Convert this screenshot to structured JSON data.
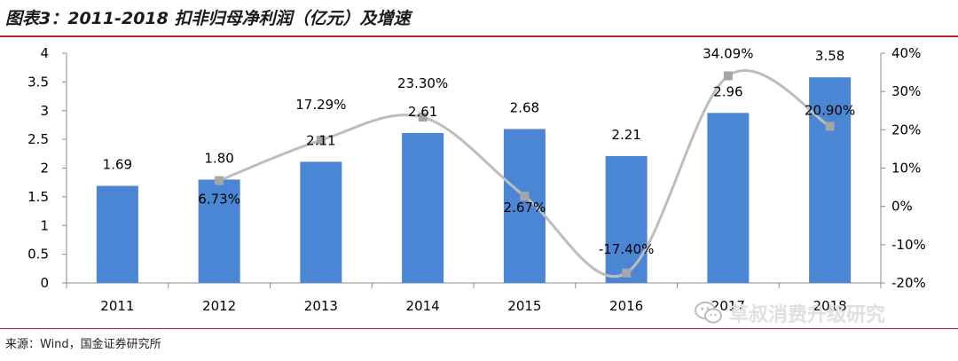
{
  "title": "图表3：2011-2018 扣非归母净利润（亿元）及增速",
  "source": "来源：Wind，国金证券研究所",
  "watermark": "草叔消费升级研究",
  "colors": {
    "bar": "#4a86d4",
    "line": "#bdbdbd",
    "marker": "#a6a6a6",
    "rule": "#b0202e"
  },
  "chart_data": {
    "type": "bar",
    "categories": [
      "2011",
      "2012",
      "2013",
      "2014",
      "2015",
      "2016",
      "2017",
      "2018"
    ],
    "series": [
      {
        "type": "bar",
        "axis": "left",
        "values": [
          1.69,
          1.8,
          2.11,
          2.61,
          2.68,
          2.21,
          2.96,
          3.58
        ],
        "labels": [
          "1.69",
          "1.80",
          "2.11",
          "2.61",
          "2.68",
          "2.21",
          "2.96",
          "3.58"
        ]
      },
      {
        "type": "line",
        "axis": "right",
        "smooth": true,
        "values": [
          null,
          6.73,
          17.29,
          23.3,
          2.67,
          -17.4,
          34.09,
          20.9
        ],
        "labels": [
          "",
          "6.73%",
          "17.29%",
          "23.30%",
          "2.67%",
          "-17.40%",
          "34.09%",
          "20.90%"
        ]
      }
    ],
    "ylim": [
      0,
      4
    ],
    "yticks": [
      "0",
      "0.5",
      "1",
      "1.5",
      "2",
      "2.5",
      "3",
      "3.5",
      "4"
    ],
    "y2lim": [
      -20,
      40
    ],
    "y2ticks": [
      "-20%",
      "-10%",
      "0%",
      "10%",
      "20%",
      "30%",
      "40%"
    ],
    "grid": false,
    "legend": "none"
  }
}
